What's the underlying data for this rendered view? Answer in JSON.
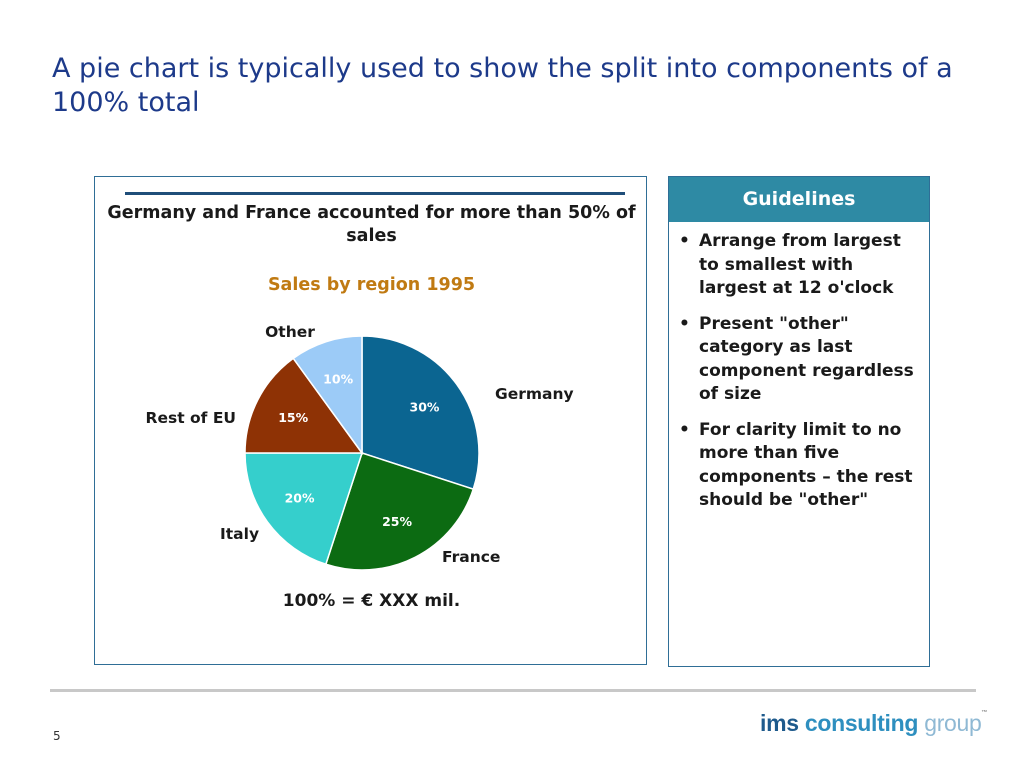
{
  "slide": {
    "title": "A pie chart is typically used to show the split into components of a 100% total",
    "page_number": "5"
  },
  "chart_panel": {
    "headline": "Germany and France accounted for more than 50% of sales",
    "footnote": "100% = € XXX mil."
  },
  "chart_data": {
    "type": "pie",
    "title": "Sales by region 1995",
    "start_angle": "12 o'clock",
    "direction": "clockwise",
    "slices": [
      {
        "label": "Germany",
        "value": 30,
        "value_label": "30%",
        "color": "#0b6591"
      },
      {
        "label": "France",
        "value": 25,
        "value_label": "25%",
        "color": "#0c6b12"
      },
      {
        "label": "Italy",
        "value": 20,
        "value_label": "20%",
        "color": "#35cfcc"
      },
      {
        "label": "Rest of EU",
        "value": 15,
        "value_label": "15%",
        "color": "#8e3205"
      },
      {
        "label": "Other",
        "value": 10,
        "value_label": "10%",
        "color": "#9ccbf7"
      }
    ]
  },
  "guidelines": {
    "header": "Guidelines",
    "items": [
      "Arrange from largest to smallest with largest at 12 o'clock",
      "Present \"other\" category as last component regardless of size",
      "For clarity limit to no more than five components – the rest should be \"other\""
    ]
  },
  "logo": {
    "part1": "ims",
    "part2": "consulting",
    "part3": "group",
    "tm": "™"
  },
  "colors": {
    "accent": "#2e8aa4",
    "title": "#1d3a8a",
    "chart_title": "#c07a12",
    "panel_border": "#2f6e96"
  }
}
